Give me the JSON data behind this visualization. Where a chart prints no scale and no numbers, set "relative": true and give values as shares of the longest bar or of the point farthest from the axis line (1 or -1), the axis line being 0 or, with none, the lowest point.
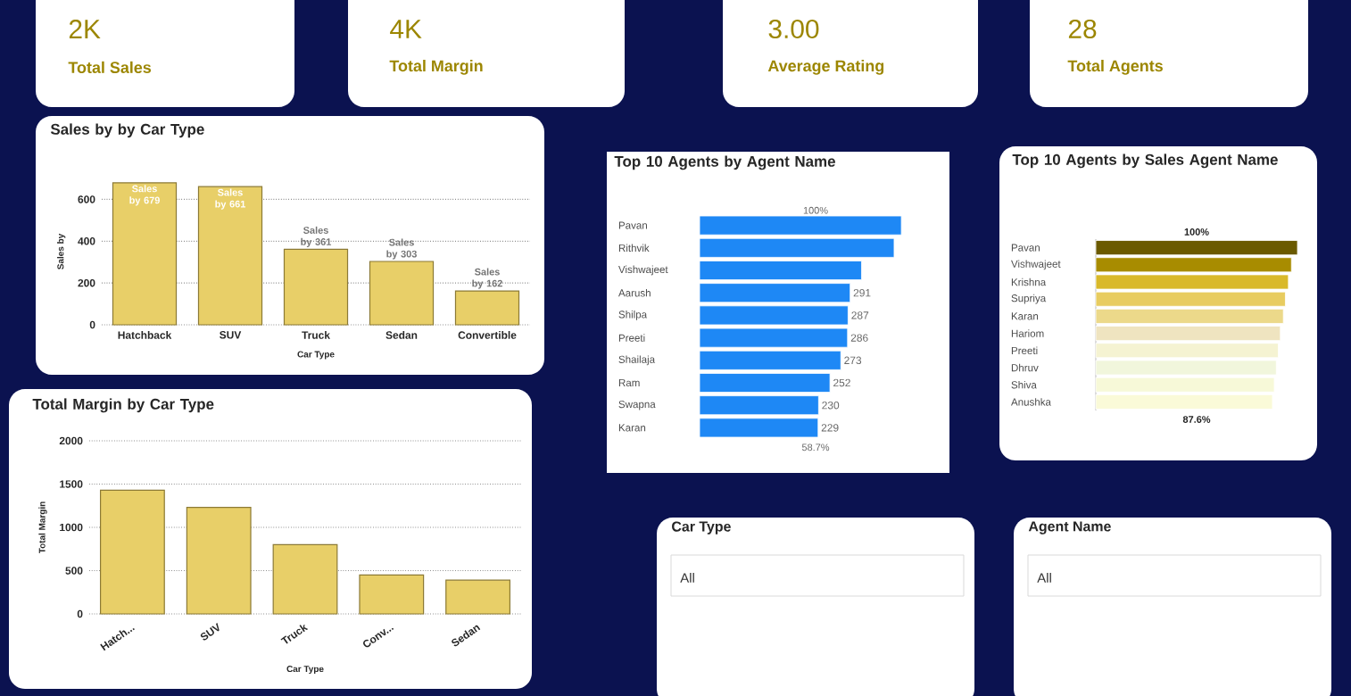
{
  "chart_data": [
    {
      "type": "other",
      "annotations": [
        "2K",
        "Total Sales"
      ]
    },
    {
      "type": "other",
      "annotations": [
        "4K",
        "Total Margin"
      ]
    },
    {
      "type": "other",
      "annotations": [
        "3.00",
        "Average Rating"
      ]
    },
    {
      "type": "other",
      "annotations": [
        "28",
        "Total Agents"
      ]
    },
    {
      "type": "bar",
      "title": "Sales by by Car Type",
      "xlabel": "Car Type",
      "ylabel": "Sales by",
      "categories": [
        "Hatchback",
        "SUV",
        "Truck",
        "Sedan",
        "Convertible"
      ],
      "values": [
        679,
        661,
        361,
        303,
        162
      ],
      "value_labels": [
        "Sales by 679",
        "Sales by 661",
        "Sales by 361",
        "Sales by 303",
        "Sales by 162"
      ],
      "color": "#e8cf68",
      "ylim": [
        0,
        700
      ],
      "yticks": [
        0,
        200,
        400,
        600
      ],
      "grid": "y"
    },
    {
      "type": "bar",
      "orientation": "horizontal",
      "title": "Top 10 Agents by Agent Name",
      "categories": [
        "Pavan",
        "Rithvik",
        "Vishwajeet",
        "Aarush",
        "Shilpa",
        "Preeti",
        "Shailaja",
        "Ram",
        "Swapna",
        "Karan"
      ],
      "values": [
        390,
        376,
        313,
        291,
        287,
        286,
        273,
        252,
        230,
        229
      ],
      "value_labels": [
        null,
        null,
        null,
        "291",
        "287",
        "286",
        "273",
        "252",
        "230",
        "229"
      ],
      "color": "#1e88f5",
      "annotations": [
        "100%",
        "58.7%"
      ]
    },
    {
      "type": "bar",
      "orientation": "horizontal",
      "relative": true,
      "title": "Top 10 Agents by Sales Agent Name",
      "categories": [
        "Pavan",
        "Vishwajeet",
        "Krishna",
        "Supriya",
        "Karan",
        "Hariom",
        "Preeti",
        "Dhruv",
        "Shiva",
        "Anushka"
      ],
      "values": [
        1,
        0.97,
        0.955,
        0.94,
        0.93,
        0.915,
        0.905,
        0.895,
        0.885,
        0.876
      ],
      "colors": [
        "#6b5a00",
        "#a88c00",
        "#d9b92a",
        "#e8cc60",
        "#ecd98a",
        "#efe4c0",
        "#f5f3d2",
        "#f1f6dc",
        "#f7f9d8",
        "#fafad8"
      ],
      "annotations": [
        "100%",
        "87.6%"
      ]
    },
    {
      "type": "bar",
      "title": "Total Margin by Car Type",
      "xlabel": "Car Type",
      "ylabel": "Total Margin",
      "categories": [
        "Hatch...",
        "SUV",
        "Truck",
        "Conv...",
        "Sedan"
      ],
      "values": [
        1430,
        1230,
        800,
        450,
        390
      ],
      "color": "#e8cf68",
      "ylim": [
        0,
        2000
      ],
      "yticks": [
        0,
        500,
        1000,
        1500,
        2000
      ],
      "grid": "y"
    },
    {
      "type": "other",
      "title": "Car Type",
      "annotations": [
        "All"
      ]
    },
    {
      "type": "other",
      "title": "Agent Name",
      "annotations": [
        "All"
      ]
    }
  ]
}
